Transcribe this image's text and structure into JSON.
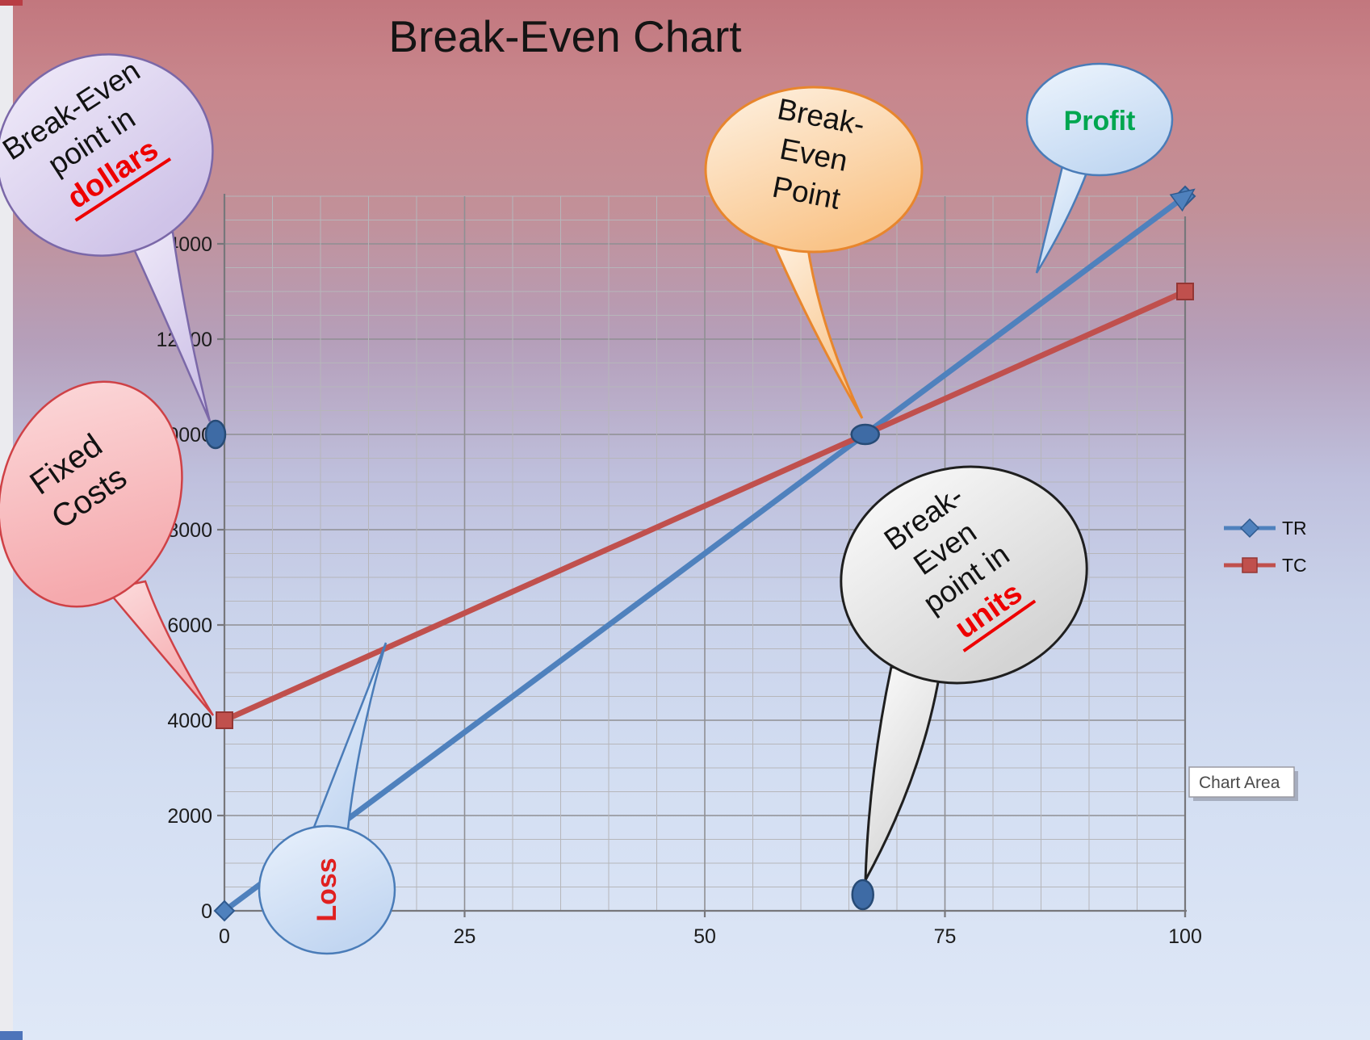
{
  "chart_data": {
    "type": "line",
    "title": "Break-Even Chart",
    "x": [
      0,
      100
    ],
    "series": [
      {
        "name": "TR",
        "values": [
          0,
          15000
        ],
        "color": "#4f81bd",
        "edge": "#2f5a8f",
        "marker": "diamond"
      },
      {
        "name": "TC",
        "values": [
          4000,
          13000
        ],
        "color": "#c0504d",
        "edge": "#943634",
        "marker": "square"
      }
    ],
    "xlim": [
      0,
      100
    ],
    "ylim": [
      0,
      15000
    ],
    "x_tick_step": 25,
    "y_tick_step": 2000,
    "x_minor_step": 5,
    "y_minor_step": 500,
    "grid": true,
    "legend_position": "right",
    "break_even": {
      "units": 66.7,
      "dollars": 10000
    }
  },
  "axes": {
    "y_ticks": [
      "0",
      "2000",
      "4000",
      "6000",
      "8000",
      "10000",
      "12000",
      "14000"
    ],
    "x_ticks": [
      "0",
      "25",
      "50",
      "75",
      "100"
    ]
  },
  "callouts": {
    "dollars": {
      "line1": "Break-Even",
      "line2": "point in",
      "line3": "dollars"
    },
    "fixed_costs": {
      "line1": "Fixed",
      "line2": "Costs"
    },
    "break_even_point": {
      "line1": "Break-",
      "line2": "Even",
      "line3": "Point"
    },
    "profit": {
      "label": "Profit",
      "color": "#00a650"
    },
    "units": {
      "line1": "Break-",
      "line2": "Even",
      "line3": "point in",
      "line4": "units"
    },
    "loss": {
      "label": "Loss",
      "color": "#e02020"
    },
    "emphasis_color": "#ee0000"
  },
  "tooltip": {
    "label": "Chart Area"
  },
  "marker_color": {
    "fill": "#3e6ba5",
    "edge": "#274b76"
  }
}
